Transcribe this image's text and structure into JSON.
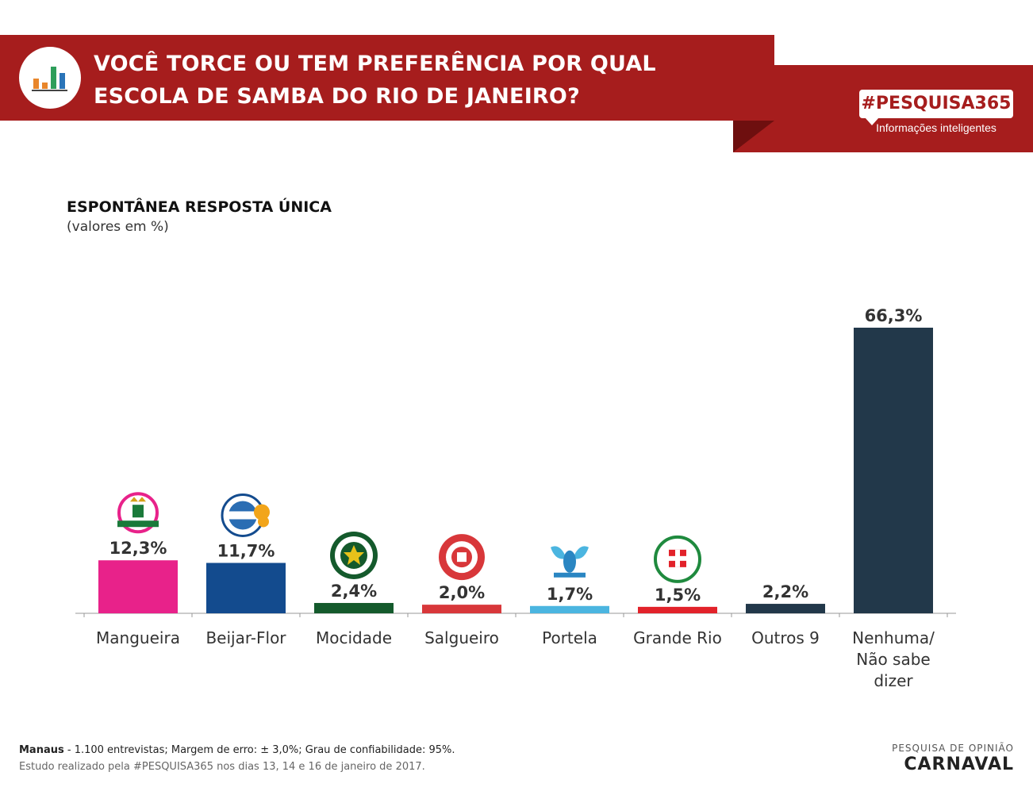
{
  "header": {
    "title_line1": "VOCÊ TORCE OU TEM PREFERÊNCIA POR QUAL",
    "title_line2": "ESCOLA DE SAMBA DO RIO DE JANEIRO?",
    "brand": "#PESQUISA365",
    "brand_tagline": "Informações inteligentes",
    "icon": "bar-chart-icon",
    "colors": {
      "banner": "#a61d1d",
      "banner_dark": "#6e0f0f"
    }
  },
  "footer": {
    "location": "Manaus",
    "method": " - 1.100 entrevistas; Margem de erro: ± 3,0%; Grau de confiabilidade: 95%.",
    "study": "Estudo realizado pela #PESQUISA365 nos dias 13, 14 e 16 de janeiro de 2017.",
    "category_small": "PESQUISA DE OPINIÃO",
    "category_big": "CARNAVAL"
  },
  "chart_data": {
    "type": "bar",
    "title": "ESPONTÂNEA RESPOSTA ÚNICA",
    "subtitle": "(valores em %)",
    "categories": [
      "Mangueira",
      "Beijar-Flor",
      "Mocidade",
      "Salgueiro",
      "Portela",
      "Grande Rio",
      "Outros 9",
      "Nenhuma/\nNão sabe\ndizer"
    ],
    "values": [
      12.3,
      11.7,
      2.4,
      2.0,
      1.7,
      1.5,
      2.2,
      66.3
    ],
    "value_labels": [
      "12,3%",
      "11,7%",
      "2,4%",
      "2,0%",
      "1,7%",
      "1,5%",
      "2,2%",
      "66,3%"
    ],
    "colors": [
      "#e8228a",
      "#134b8e",
      "#145a2c",
      "#d8373a",
      "#4bb5e0",
      "#e2222a",
      "#22384a",
      "#22384a"
    ],
    "logos": [
      "mangueira-logo",
      "beija-flor-logo",
      "mocidade-logo",
      "salgueiro-logo",
      "portela-logo",
      "grande-rio-logo",
      null,
      null
    ],
    "ylim": [
      0,
      66.3
    ],
    "grid": false,
    "legend": "none"
  }
}
